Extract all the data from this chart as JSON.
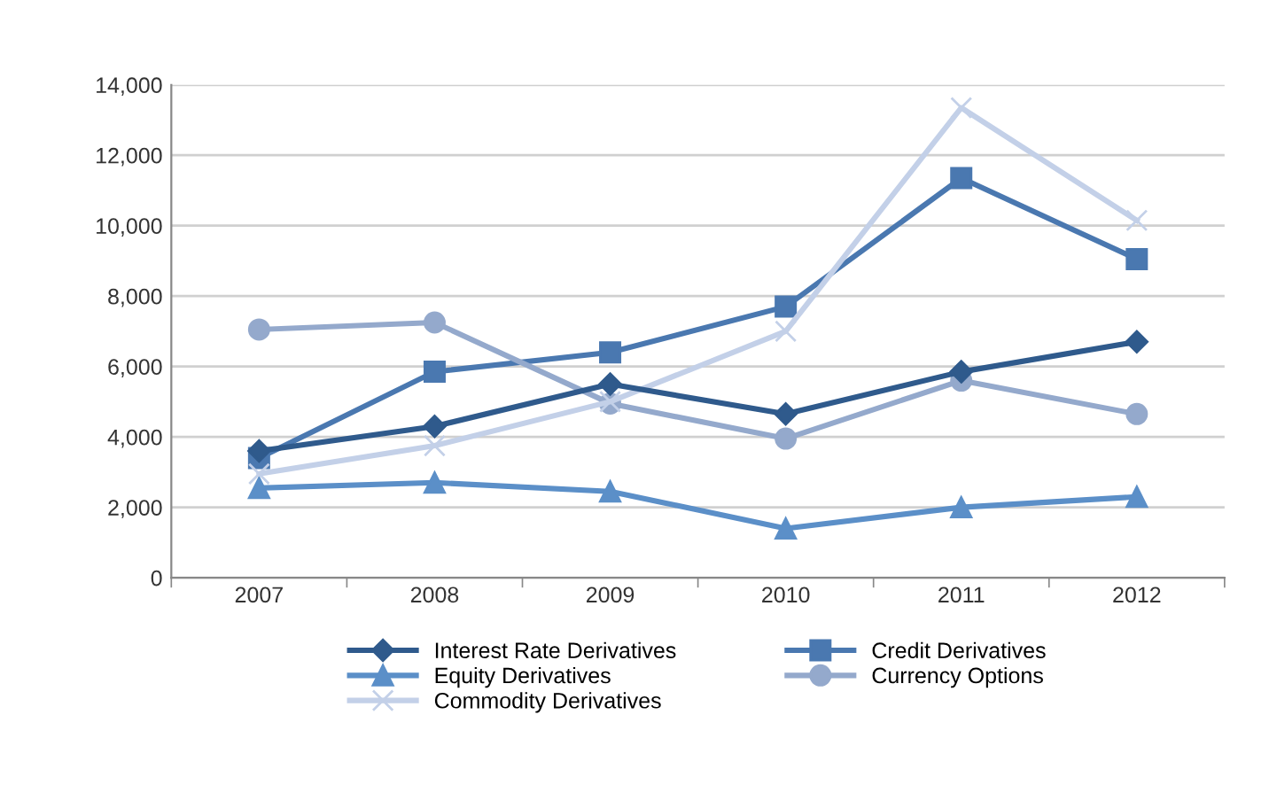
{
  "chart_data": {
    "type": "line",
    "categories": [
      "2007",
      "2008",
      "2009",
      "2010",
      "2011",
      "2012"
    ],
    "series": [
      {
        "name": "Interest Rate Derivatives",
        "color": "#2f5a8c",
        "marker": "diamond",
        "values": [
          3600,
          4300,
          5500,
          4650,
          5850,
          6700
        ]
      },
      {
        "name": "Credit Derivatives",
        "color": "#4a78b0",
        "marker": "square",
        "values": [
          3400,
          5850,
          6400,
          7700,
          11350,
          9050
        ]
      },
      {
        "name": "Equity Derivatives",
        "color": "#5b8fc8",
        "marker": "triangle",
        "values": [
          2550,
          2700,
          2450,
          1400,
          2000,
          2300
        ]
      },
      {
        "name": "Currency Options",
        "color": "#94a9cc",
        "marker": "circle",
        "values": [
          7050,
          7250,
          4950,
          3950,
          5600,
          4650
        ]
      },
      {
        "name": "Commodity Derivatives",
        "color": "#c3d0e8",
        "marker": "cross",
        "values": [
          2950,
          3750,
          5000,
          7000,
          13350,
          10150
        ]
      }
    ],
    "ylim": [
      0,
      14000
    ],
    "yticks": [
      {
        "value": 0,
        "label": "0"
      },
      {
        "value": 2000,
        "label": "2,000"
      },
      {
        "value": 4000,
        "label": "4,000"
      },
      {
        "value": 6000,
        "label": "6,000"
      },
      {
        "value": 8000,
        "label": "8,000"
      },
      {
        "value": 10000,
        "label": "10,000"
      },
      {
        "value": 12000,
        "label": "12,000"
      },
      {
        "value": 14000,
        "label": "14,000"
      }
    ],
    "grid": "y",
    "legend": "bottom"
  }
}
